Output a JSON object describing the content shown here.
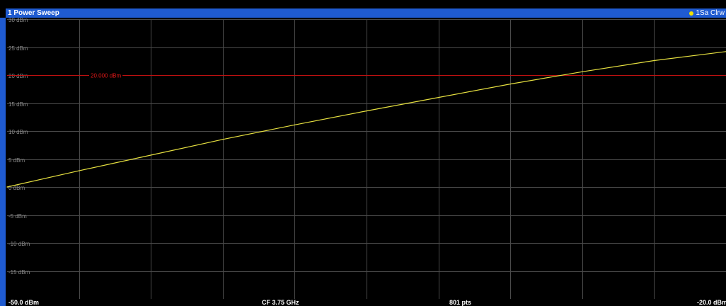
{
  "window": {
    "title": "1 Power Sweep",
    "trace_label": "1Sa Clrw"
  },
  "footer": {
    "start": "-50.0 dBm",
    "center": "CF 3.75 GHz",
    "points": "801 pts",
    "stop": "-20.0 dBm"
  },
  "colors": {
    "title_bar": "#1f5bd1",
    "background": "#000000",
    "grid": "#4a4a4a",
    "trace": "#e6e040",
    "limit_line": "#c01010",
    "limit_label": "#e01818",
    "tick_label": "#8a8a8a"
  },
  "chart_data": {
    "type": "line",
    "title": "1 Power Sweep",
    "xlabel": "",
    "ylabel": "",
    "xlim": [
      -50,
      -20
    ],
    "ylim": [
      -20,
      30
    ],
    "x_divisions": 10,
    "y_ticks": [
      30,
      25,
      20,
      15,
      10,
      5,
      0,
      -5,
      -10,
      -15
    ],
    "y_tick_labels": [
      "30 dBm",
      "25 dBm",
      "20 dBm",
      "15 dBm",
      "10 dBm",
      "5 dBm",
      "0 dBm",
      "-5 dBm",
      "-10 dBm",
      "-15 dBm"
    ],
    "grid": true,
    "reference_line": {
      "value": 20.0,
      "label": "20.000 dBm"
    },
    "series": [
      {
        "x": [
          -50,
          -47,
          -44,
          -41,
          -38,
          -35,
          -32,
          -29,
          -26,
          -23,
          -20
        ],
        "y": [
          0.0,
          2.9,
          5.7,
          8.5,
          11.1,
          13.6,
          16.0,
          18.4,
          20.6,
          22.6,
          24.2
        ]
      }
    ]
  }
}
